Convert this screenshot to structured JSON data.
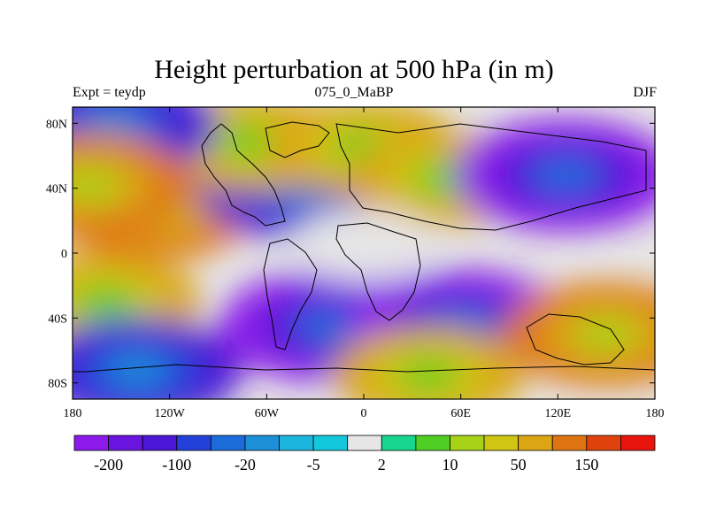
{
  "title": "Height perturbation at 500 hPa (in m)",
  "left_string": "Expt = teydp",
  "center_string": "075_0_MaBP",
  "right_string": "DJF",
  "axes": {
    "x_ticks": [
      {
        "lon": -180,
        "label": "180"
      },
      {
        "lon": -120,
        "label": "120W"
      },
      {
        "lon": -60,
        "label": "60W"
      },
      {
        "lon": 0,
        "label": "0"
      },
      {
        "lon": 60,
        "label": "60E"
      },
      {
        "lon": 120,
        "label": "120E"
      },
      {
        "lon": 180,
        "label": "180"
      }
    ],
    "y_ticks": [
      {
        "lat": 80,
        "label": "80N"
      },
      {
        "lat": 40,
        "label": "40N"
      },
      {
        "lat": 0,
        "label": "0"
      },
      {
        "lat": -40,
        "label": "40S"
      },
      {
        "lat": -80,
        "label": "80S"
      }
    ],
    "lon_range": [
      -180,
      180
    ],
    "lat_range": [
      -90,
      90
    ]
  },
  "colorbar": {
    "colors": [
      "#8c1aeb",
      "#6a14e0",
      "#4b16d6",
      "#2341d9",
      "#1c6bdb",
      "#1c8fd9",
      "#1cb5de",
      "#13c8dc",
      "#e6e6e6",
      "#17d68e",
      "#4fcf23",
      "#a6d318",
      "#cfc512",
      "#dba514",
      "#df7412",
      "#e0420e",
      "#e8140e"
    ],
    "labels": [
      {
        "after_box": 1,
        "text": "-200"
      },
      {
        "after_box": 3,
        "text": "-100"
      },
      {
        "after_box": 5,
        "text": "-20"
      },
      {
        "after_box": 7,
        "text": "-5"
      },
      {
        "after_box": 9,
        "text": "2"
      },
      {
        "after_box": 11,
        "text": "10"
      },
      {
        "after_box": 13,
        "text": "50"
      },
      {
        "after_box": 15,
        "text": "150"
      }
    ]
  },
  "field_features": [
    {
      "name": "north-pacific-positive",
      "lon": -130,
      "lat": 28,
      "level": 4
    },
    {
      "name": "north-america-negative",
      "lon": -40,
      "lat": 42,
      "level": -4
    },
    {
      "name": "greenland-positive",
      "lon": -70,
      "lat": 68,
      "level": 3
    },
    {
      "name": "arctic-atlantic-positive",
      "lon": 0,
      "lat": 65,
      "level": 3
    },
    {
      "name": "europe-positive",
      "lon": 50,
      "lat": 46,
      "level": 3
    },
    {
      "name": "siberia-negative",
      "lon": 125,
      "lat": 48,
      "level": -5
    },
    {
      "name": "dateline-north-negative",
      "lon": -155,
      "lat": 78,
      "level": -4
    },
    {
      "name": "pacific-west-positive",
      "lon": -170,
      "lat": 42,
      "level": 4
    },
    {
      "name": "south-atlantic-negative",
      "lon": -20,
      "lat": -45,
      "level": -5
    },
    {
      "name": "south-indian-negative",
      "lon": 60,
      "lat": -45,
      "level": -5
    },
    {
      "name": "south-pacific-positive",
      "lon": -160,
      "lat": -30,
      "level": 3
    },
    {
      "name": "australia-south-positive",
      "lon": 150,
      "lat": -50,
      "level": 4
    },
    {
      "name": "southern-ocean-negative",
      "lon": -140,
      "lat": -72,
      "level": -4
    },
    {
      "name": "antarctic-positive",
      "lon": 40,
      "lat": -75,
      "level": 3
    },
    {
      "name": "tropics-neutral",
      "lon": 0,
      "lat": 5,
      "level": 0
    }
  ]
}
